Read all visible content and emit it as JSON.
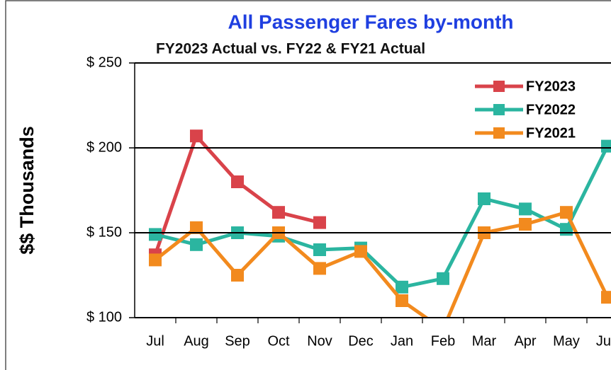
{
  "chart_data": {
    "type": "line",
    "title": "All Passenger Fares by-month",
    "subtitle": "FY2023 Actual vs. FY22 & FY21 Actual",
    "y_label": "$$ Thousands",
    "categories": [
      "Jul",
      "Aug",
      "Sep",
      "Oct",
      "Nov",
      "Dec",
      "Jan",
      "Feb",
      "Mar",
      "Apr",
      "May",
      "Jun"
    ],
    "series": [
      {
        "name": "FY2023",
        "color": "#d9434a",
        "values": [
          137,
          207,
          180,
          162,
          156,
          null,
          null,
          null,
          null,
          null,
          null,
          null
        ]
      },
      {
        "name": "FY2022",
        "color": "#2bb5a0",
        "values": [
          149,
          143,
          150,
          148,
          140,
          141,
          118,
          123,
          170,
          164,
          152,
          201
        ]
      },
      {
        "name": "FY2021",
        "color": "#f28a1e",
        "values": [
          134,
          153,
          125,
          150,
          129,
          139,
          110,
          93,
          150,
          155,
          162,
          112
        ]
      }
    ],
    "ylim": [
      100,
      250
    ],
    "yticks": [
      {
        "value": 100,
        "label": "$ 100"
      },
      {
        "value": 150,
        "label": "$ 150"
      },
      {
        "value": 200,
        "label": "$ 200"
      },
      {
        "value": 250,
        "label": "$ 250"
      }
    ],
    "grid": true,
    "legend": "upper right"
  }
}
